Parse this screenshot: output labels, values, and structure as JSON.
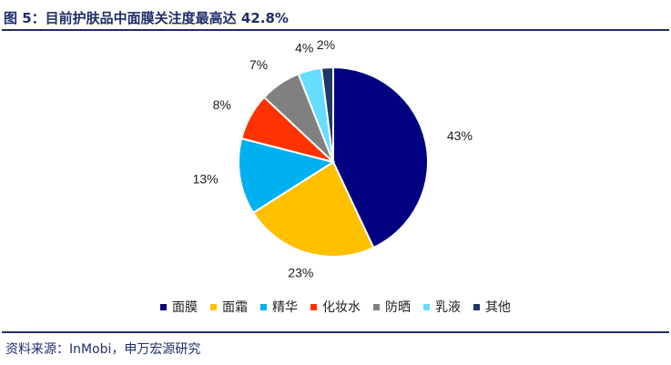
{
  "figure": {
    "title": "图 5：目前护肤品中面膜关注度最高达 42.8%",
    "source": "资料来源：InMobi，申万宏源研究"
  },
  "chart_data": {
    "type": "pie",
    "start_angle_deg": 0,
    "direction": "clockwise",
    "slices": [
      {
        "label": "面膜",
        "value": 43,
        "value_label": "43%",
        "color": "#000080"
      },
      {
        "label": "面霜",
        "value": 23,
        "value_label": "23%",
        "color": "#FFC000"
      },
      {
        "label": "精华",
        "value": 13,
        "value_label": "13%",
        "color": "#00B0F0"
      },
      {
        "label": "化妆水",
        "value": 8,
        "value_label": "8%",
        "color": "#FF3300"
      },
      {
        "label": "防晒",
        "value": 7,
        "value_label": "7%",
        "color": "#808080"
      },
      {
        "label": "乳液",
        "value": 4,
        "value_label": "4%",
        "color": "#66DDFF"
      },
      {
        "label": "其他",
        "value": 2,
        "value_label": "2%",
        "color": "#1F3864"
      }
    ],
    "legend_position": "bottom"
  }
}
